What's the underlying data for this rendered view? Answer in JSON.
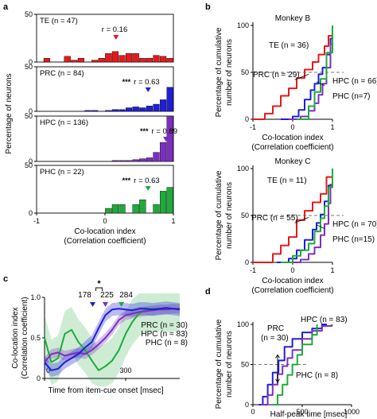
{
  "panel_labels": [
    "a",
    "b",
    "c",
    "d"
  ],
  "colors": {
    "TE": "#e31a1c",
    "PRC": "#1f1fd6",
    "HPC": "#7b2fbf",
    "PHC": "#1faa3a"
  },
  "chart_data": [
    {
      "id": "a",
      "type": "bar",
      "ylabel": "Percentage of neurons",
      "xlabel": "Co-location index",
      "xlabel2": "(Correlation coefficient)",
      "xlim": [
        -1,
        1
      ],
      "ylim": [
        0,
        50
      ],
      "xticks": [
        "-1",
        "0",
        "1"
      ],
      "yticks": [
        "0",
        "50"
      ],
      "bin_edges_start": -1,
      "bin_width": 0.1,
      "series": [
        {
          "name": "TE",
          "label": "TE (n = 47)",
          "r": "r = 0.16",
          "r_value": 0.16,
          "stars": "",
          "values": [
            0,
            4,
            0,
            0,
            6,
            2,
            4,
            0,
            2,
            4,
            9,
            11,
            7,
            9,
            9,
            4,
            4,
            7,
            6,
            4
          ]
        },
        {
          "name": "PRC",
          "label": "PRC (n = 84)",
          "r": "r = 0.63",
          "r_value": 0.63,
          "stars": "***",
          "values": [
            0,
            0,
            0,
            0,
            0,
            0,
            0,
            1,
            1,
            0,
            1,
            2,
            2,
            4,
            5,
            4,
            6,
            8,
            13,
            27
          ]
        },
        {
          "name": "HPC",
          "label": "HPC (n = 136)",
          "r": "r = 0.89",
          "r_value": 0.89,
          "stars": "***",
          "values": [
            0,
            0,
            0,
            0,
            0,
            0,
            0,
            0,
            0,
            0,
            0,
            1,
            1,
            1,
            2,
            3,
            4,
            10,
            21,
            50
          ]
        },
        {
          "name": "PHC",
          "label": "PHC (n = 22)",
          "r": "r = 0.63",
          "r_value": 0.63,
          "stars": "***",
          "values": [
            0,
            0,
            0,
            0,
            0,
            0,
            0,
            0,
            0,
            0,
            5,
            9,
            9,
            0,
            9,
            14,
            0,
            9,
            23,
            27
          ]
        }
      ]
    },
    {
      "id": "b",
      "type": "line",
      "ylabel": "Percentage of cumulative",
      "ylabel2": "number of neurons",
      "xlabel": "Co-location index",
      "xlabel2": "(Correlation coefficient)",
      "xlim": [
        -1,
        1
      ],
      "ylim": [
        0,
        100
      ],
      "xticks": [
        "-1",
        "0",
        "1"
      ],
      "yticks": [
        "0",
        "50",
        "100"
      ],
      "reference_line": 50,
      "subplots": [
        {
          "title": "Monkey B",
          "series": [
            {
              "name": "TE",
              "label": "TE (n = 36)",
              "x": [
                -1,
                -0.7,
                -0.5,
                -0.3,
                -0.1,
                0.1,
                0.3,
                0.5,
                0.65,
                0.8,
                0.9,
                1
              ],
              "y": [
                0,
                6,
                14,
                25,
                33,
                44,
                53,
                61,
                69,
                78,
                89,
                100
              ]
            },
            {
              "name": "PRC",
              "label": "PRC (n = 29)",
              "x": [
                -0.3,
                0,
                0.15,
                0.3,
                0.45,
                0.55,
                0.65,
                0.75,
                0.85,
                0.95,
                1
              ],
              "y": [
                0,
                3,
                10,
                21,
                31,
                38,
                48,
                55,
                69,
                86,
                100
              ]
            },
            {
              "name": "HPC",
              "label": "HPC (n = 66)",
              "x": [
                -0.1,
                0.2,
                0.4,
                0.55,
                0.65,
                0.75,
                0.85,
                0.95,
                1
              ],
              "y": [
                0,
                3,
                9,
                17,
                26,
                38,
                55,
                80,
                100
              ]
            },
            {
              "name": "PHC",
              "label": "PHC (n=7)",
              "x": [
                0.1,
                0.4,
                0.55,
                0.7,
                0.85,
                1
              ],
              "y": [
                0,
                14,
                29,
                43,
                71,
                100
              ]
            }
          ]
        },
        {
          "title": "Monkey C",
          "series": [
            {
              "name": "TE",
              "label": "TE (n = 11)",
              "x": [
                -1,
                -0.5,
                -0.3,
                -0.1,
                0.1,
                0.3,
                0.5,
                0.7,
                0.85,
                1
              ],
              "y": [
                0,
                9,
                18,
                27,
                45,
                55,
                64,
                73,
                91,
                100
              ]
            },
            {
              "name": "PRC",
              "label": "PRC (n = 55)",
              "x": [
                -0.4,
                -0.1,
                0.1,
                0.3,
                0.5,
                0.6,
                0.7,
                0.8,
                0.9,
                1
              ],
              "y": [
                0,
                4,
                13,
                24,
                35,
                42,
                51,
                65,
                82,
                100
              ]
            },
            {
              "name": "HPC",
              "label": "HPC (n = 70)",
              "x": [
                -0.2,
                0.2,
                0.4,
                0.55,
                0.7,
                0.8,
                0.9,
                0.95,
                1
              ],
              "y": [
                0,
                3,
                9,
                16,
                29,
                41,
                63,
                83,
                100
              ]
            },
            {
              "name": "PHC",
              "label": "PHC (n=15)",
              "x": [
                -0.3,
                0,
                0.2,
                0.4,
                0.55,
                0.7,
                0.8,
                0.9,
                1
              ],
              "y": [
                0,
                7,
                13,
                20,
                33,
                47,
                60,
                80,
                100
              ]
            }
          ]
        }
      ]
    },
    {
      "id": "c",
      "type": "line",
      "ylabel": "Co-location index",
      "ylabel2": "(Correlation coefficient)",
      "xlabel": "Time from item-cue onset [msec]",
      "xlim": [
        0,
        500
      ],
      "ylim": [
        0,
        1
      ],
      "xticks": [
        "0",
        "300"
      ],
      "yticks": [
        "0",
        "0.5",
        "1.0"
      ],
      "significance": "*",
      "series": [
        {
          "name": "PRC",
          "label": "PRC (n = 30)",
          "half_peak_time": "178",
          "half_peak_ms": 178,
          "x": [
            0,
            25,
            50,
            75,
            100,
            125,
            150,
            175,
            200,
            225,
            250,
            275,
            300,
            325,
            350,
            375,
            400,
            425,
            450,
            475,
            500
          ],
          "y": [
            0.2,
            0.1,
            0.12,
            0.2,
            0.25,
            0.3,
            0.38,
            0.45,
            0.62,
            0.78,
            0.85,
            0.86,
            0.85,
            0.84,
            0.86,
            0.86,
            0.85,
            0.86,
            0.87,
            0.86,
            0.85
          ],
          "band": 0.08
        },
        {
          "name": "HPC",
          "label": "HPC (n = 83)",
          "half_peak_time": "225",
          "half_peak_ms": 225,
          "x": [
            0,
            25,
            50,
            75,
            100,
            125,
            150,
            175,
            200,
            225,
            250,
            275,
            300,
            325,
            350,
            375,
            400,
            425,
            450,
            475,
            500
          ],
          "y": [
            0.2,
            0.3,
            0.32,
            0.28,
            0.3,
            0.32,
            0.3,
            0.35,
            0.42,
            0.5,
            0.6,
            0.72,
            0.78,
            0.8,
            0.82,
            0.83,
            0.84,
            0.85,
            0.85,
            0.86,
            0.86
          ],
          "band": 0.06
        },
        {
          "name": "PHC",
          "label": "PHC (n = 8)",
          "half_peak_time": "284",
          "half_peak_ms": 284,
          "x": [
            0,
            25,
            50,
            75,
            100,
            125,
            150,
            175,
            200,
            225,
            250,
            275,
            300,
            325,
            350,
            375,
            400,
            425,
            450,
            475,
            500
          ],
          "y": [
            0.5,
            0.2,
            0.25,
            0.55,
            0.6,
            0.45,
            0.35,
            0.22,
            0.1,
            0.15,
            0.22,
            0.35,
            0.55,
            0.7,
            0.8,
            0.85,
            0.86,
            0.86,
            0.85,
            0.86,
            0.86
          ],
          "band": 0.28
        }
      ]
    },
    {
      "id": "d",
      "type": "line",
      "ylabel": "Percentage of cumulative",
      "ylabel2": "number of neurons",
      "xlabel": "Half-peak time [msec]",
      "xlim": [
        0,
        1000
      ],
      "ylim": [
        0,
        100
      ],
      "xticks": [
        "0",
        "500",
        "1000"
      ],
      "yticks": [
        "0",
        "50",
        "100"
      ],
      "reference_line": 50,
      "series": [
        {
          "name": "PRC",
          "label": "PRC",
          "label2": "(n = 30)",
          "x": [
            60,
            100,
            150,
            200,
            260,
            320,
            400,
            500,
            600,
            700,
            750
          ],
          "y": [
            0,
            10,
            25,
            40,
            55,
            72,
            82,
            90,
            95,
            100,
            100
          ]
        },
        {
          "name": "HPC",
          "label": "HPC (n = 83)",
          "x": [
            80,
            150,
            200,
            250,
            300,
            350,
            400,
            500,
            600,
            700,
            800
          ],
          "y": [
            0,
            12,
            25,
            38,
            48,
            58,
            68,
            82,
            92,
            98,
            100
          ]
        },
        {
          "name": "PHC",
          "label": "PHC (n = 8)",
          "x": [
            200,
            250,
            300,
            350,
            400,
            450,
            500,
            600,
            650
          ],
          "y": [
            0,
            12,
            25,
            37,
            50,
            62,
            75,
            87,
            100
          ]
        }
      ]
    }
  ]
}
